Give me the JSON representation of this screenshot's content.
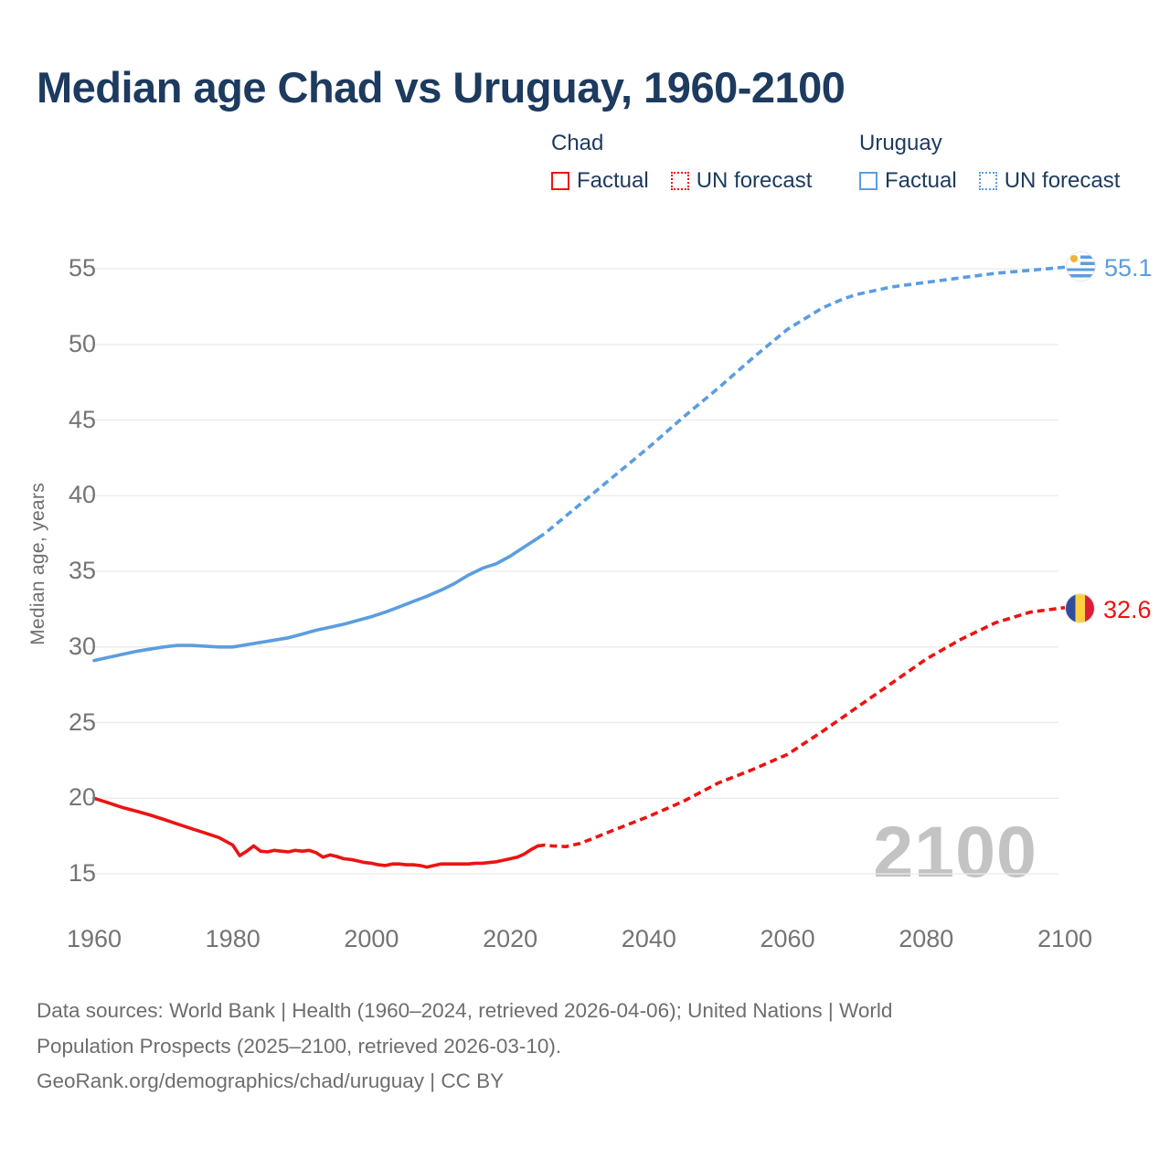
{
  "title": "Median age Chad vs Uruguay, 1960-2100",
  "legend": {
    "groups": [
      {
        "name": "Chad",
        "color": "#ec1313",
        "items": [
          {
            "label": "Factual",
            "style": "solid"
          },
          {
            "label": "UN forecast",
            "style": "dotted"
          }
        ]
      },
      {
        "name": "Uruguay",
        "color": "#5b9de0",
        "items": [
          {
            "label": "Factual",
            "style": "solid"
          },
          {
            "label": "UN forecast",
            "style": "dotted"
          }
        ]
      }
    ]
  },
  "y_axis": {
    "label": "Median age, years",
    "ticks": [
      55,
      50,
      45,
      40,
      35,
      30,
      25,
      20,
      15
    ]
  },
  "x_axis": {
    "ticks": [
      1960,
      1980,
      2000,
      2020,
      2040,
      2060,
      2080,
      2100
    ]
  },
  "watermark": "2100",
  "end_labels": {
    "uruguay": {
      "value": "55.1",
      "flag": "uruguay-flag"
    },
    "chad": {
      "value": "32.6",
      "flag": "chad-flag"
    }
  },
  "footer": {
    "line1": "Data sources: World Bank | Health (1960–2024, retrieved 2026-04-06); United Nations | World",
    "line2": "Population Prospects (2025–2100, retrieved 2026-03-10).",
    "line3": "GeoRank.org/demographics/chad/uruguay | CC BY"
  },
  "chart_data": {
    "type": "line",
    "title": "Median age Chad vs Uruguay, 1960-2100",
    "xlabel": "",
    "ylabel": "Median age, years",
    "x_range": [
      1960,
      2100
    ],
    "ylim": [
      13,
      57
    ],
    "grid": true,
    "legend_position": "top",
    "series": [
      {
        "id": "chad-factual",
        "name": "Chad Factual",
        "color": "#ec1313",
        "style": "solid",
        "points": [
          [
            1960,
            20.0
          ],
          [
            1962,
            19.7
          ],
          [
            1964,
            19.4
          ],
          [
            1966,
            19.15
          ],
          [
            1968,
            18.9
          ],
          [
            1970,
            18.6
          ],
          [
            1972,
            18.3
          ],
          [
            1974,
            18.0
          ],
          [
            1976,
            17.7
          ],
          [
            1978,
            17.4
          ],
          [
            1980,
            16.9
          ],
          [
            1981,
            16.2
          ],
          [
            1982,
            16.5
          ],
          [
            1983,
            16.85
          ],
          [
            1984,
            16.5
          ],
          [
            1985,
            16.45
          ],
          [
            1986,
            16.55
          ],
          [
            1987,
            16.5
          ],
          [
            1988,
            16.45
          ],
          [
            1989,
            16.55
          ],
          [
            1990,
            16.5
          ],
          [
            1991,
            16.55
          ],
          [
            1992,
            16.4
          ],
          [
            1993,
            16.1
          ],
          [
            1994,
            16.25
          ],
          [
            1995,
            16.15
          ],
          [
            1996,
            16.0
          ],
          [
            1997,
            15.95
          ],
          [
            1998,
            15.85
          ],
          [
            1999,
            15.75
          ],
          [
            2000,
            15.7
          ],
          [
            2001,
            15.6
          ],
          [
            2002,
            15.55
          ],
          [
            2003,
            15.65
          ],
          [
            2004,
            15.65
          ],
          [
            2005,
            15.6
          ],
          [
            2006,
            15.6
          ],
          [
            2007,
            15.55
          ],
          [
            2008,
            15.45
          ],
          [
            2009,
            15.55
          ],
          [
            2010,
            15.65
          ],
          [
            2012,
            15.65
          ],
          [
            2014,
            15.65
          ],
          [
            2015,
            15.7
          ],
          [
            2016,
            15.7
          ],
          [
            2017,
            15.75
          ],
          [
            2018,
            15.8
          ],
          [
            2019,
            15.9
          ],
          [
            2020,
            16.0
          ],
          [
            2021,
            16.1
          ],
          [
            2022,
            16.3
          ],
          [
            2023,
            16.6
          ],
          [
            2024,
            16.85
          ]
        ]
      },
      {
        "id": "chad-forecast",
        "name": "Chad UN forecast",
        "color": "#ec1313",
        "style": "dashed",
        "points": [
          [
            2024,
            16.85
          ],
          [
            2025,
            16.9
          ],
          [
            2026,
            16.85
          ],
          [
            2028,
            16.8
          ],
          [
            2030,
            17.0
          ],
          [
            2032,
            17.35
          ],
          [
            2035,
            17.9
          ],
          [
            2040,
            18.8
          ],
          [
            2045,
            19.8
          ],
          [
            2050,
            21.0
          ],
          [
            2055,
            21.9
          ],
          [
            2060,
            22.9
          ],
          [
            2065,
            24.4
          ],
          [
            2070,
            26.0
          ],
          [
            2075,
            27.6
          ],
          [
            2080,
            29.2
          ],
          [
            2085,
            30.5
          ],
          [
            2090,
            31.6
          ],
          [
            2095,
            32.3
          ],
          [
            2100,
            32.6
          ]
        ]
      },
      {
        "id": "uruguay-factual",
        "name": "Uruguay Factual",
        "color": "#5b9de0",
        "style": "solid",
        "points": [
          [
            1960,
            29.1
          ],
          [
            1962,
            29.3
          ],
          [
            1964,
            29.5
          ],
          [
            1966,
            29.7
          ],
          [
            1968,
            29.85
          ],
          [
            1970,
            30.0
          ],
          [
            1972,
            30.1
          ],
          [
            1974,
            30.1
          ],
          [
            1976,
            30.05
          ],
          [
            1978,
            30.0
          ],
          [
            1980,
            30.0
          ],
          [
            1982,
            30.15
          ],
          [
            1984,
            30.3
          ],
          [
            1986,
            30.45
          ],
          [
            1988,
            30.6
          ],
          [
            1990,
            30.85
          ],
          [
            1992,
            31.1
          ],
          [
            1994,
            31.3
          ],
          [
            1996,
            31.5
          ],
          [
            1998,
            31.75
          ],
          [
            2000,
            32.0
          ],
          [
            2002,
            32.3
          ],
          [
            2004,
            32.65
          ],
          [
            2006,
            33.0
          ],
          [
            2008,
            33.35
          ],
          [
            2010,
            33.75
          ],
          [
            2012,
            34.2
          ],
          [
            2014,
            34.75
          ],
          [
            2016,
            35.2
          ],
          [
            2018,
            35.5
          ],
          [
            2020,
            36.0
          ],
          [
            2022,
            36.6
          ],
          [
            2023,
            36.9
          ],
          [
            2024,
            37.2
          ]
        ]
      },
      {
        "id": "uruguay-forecast",
        "name": "Uruguay UN forecast",
        "color": "#5b9de0",
        "style": "dashed",
        "points": [
          [
            2024,
            37.2
          ],
          [
            2025,
            37.5
          ],
          [
            2030,
            39.4
          ],
          [
            2035,
            41.3
          ],
          [
            2040,
            43.2
          ],
          [
            2045,
            45.2
          ],
          [
            2050,
            47.1
          ],
          [
            2055,
            49.1
          ],
          [
            2060,
            51.0
          ],
          [
            2065,
            52.4
          ],
          [
            2068,
            53.0
          ],
          [
            2070,
            53.3
          ],
          [
            2075,
            53.8
          ],
          [
            2080,
            54.1
          ],
          [
            2085,
            54.4
          ],
          [
            2090,
            54.7
          ],
          [
            2095,
            54.9
          ],
          [
            2100,
            55.1
          ]
        ]
      }
    ],
    "end_values": {
      "uruguay_2100": 55.1,
      "chad_2100": 32.6
    }
  }
}
